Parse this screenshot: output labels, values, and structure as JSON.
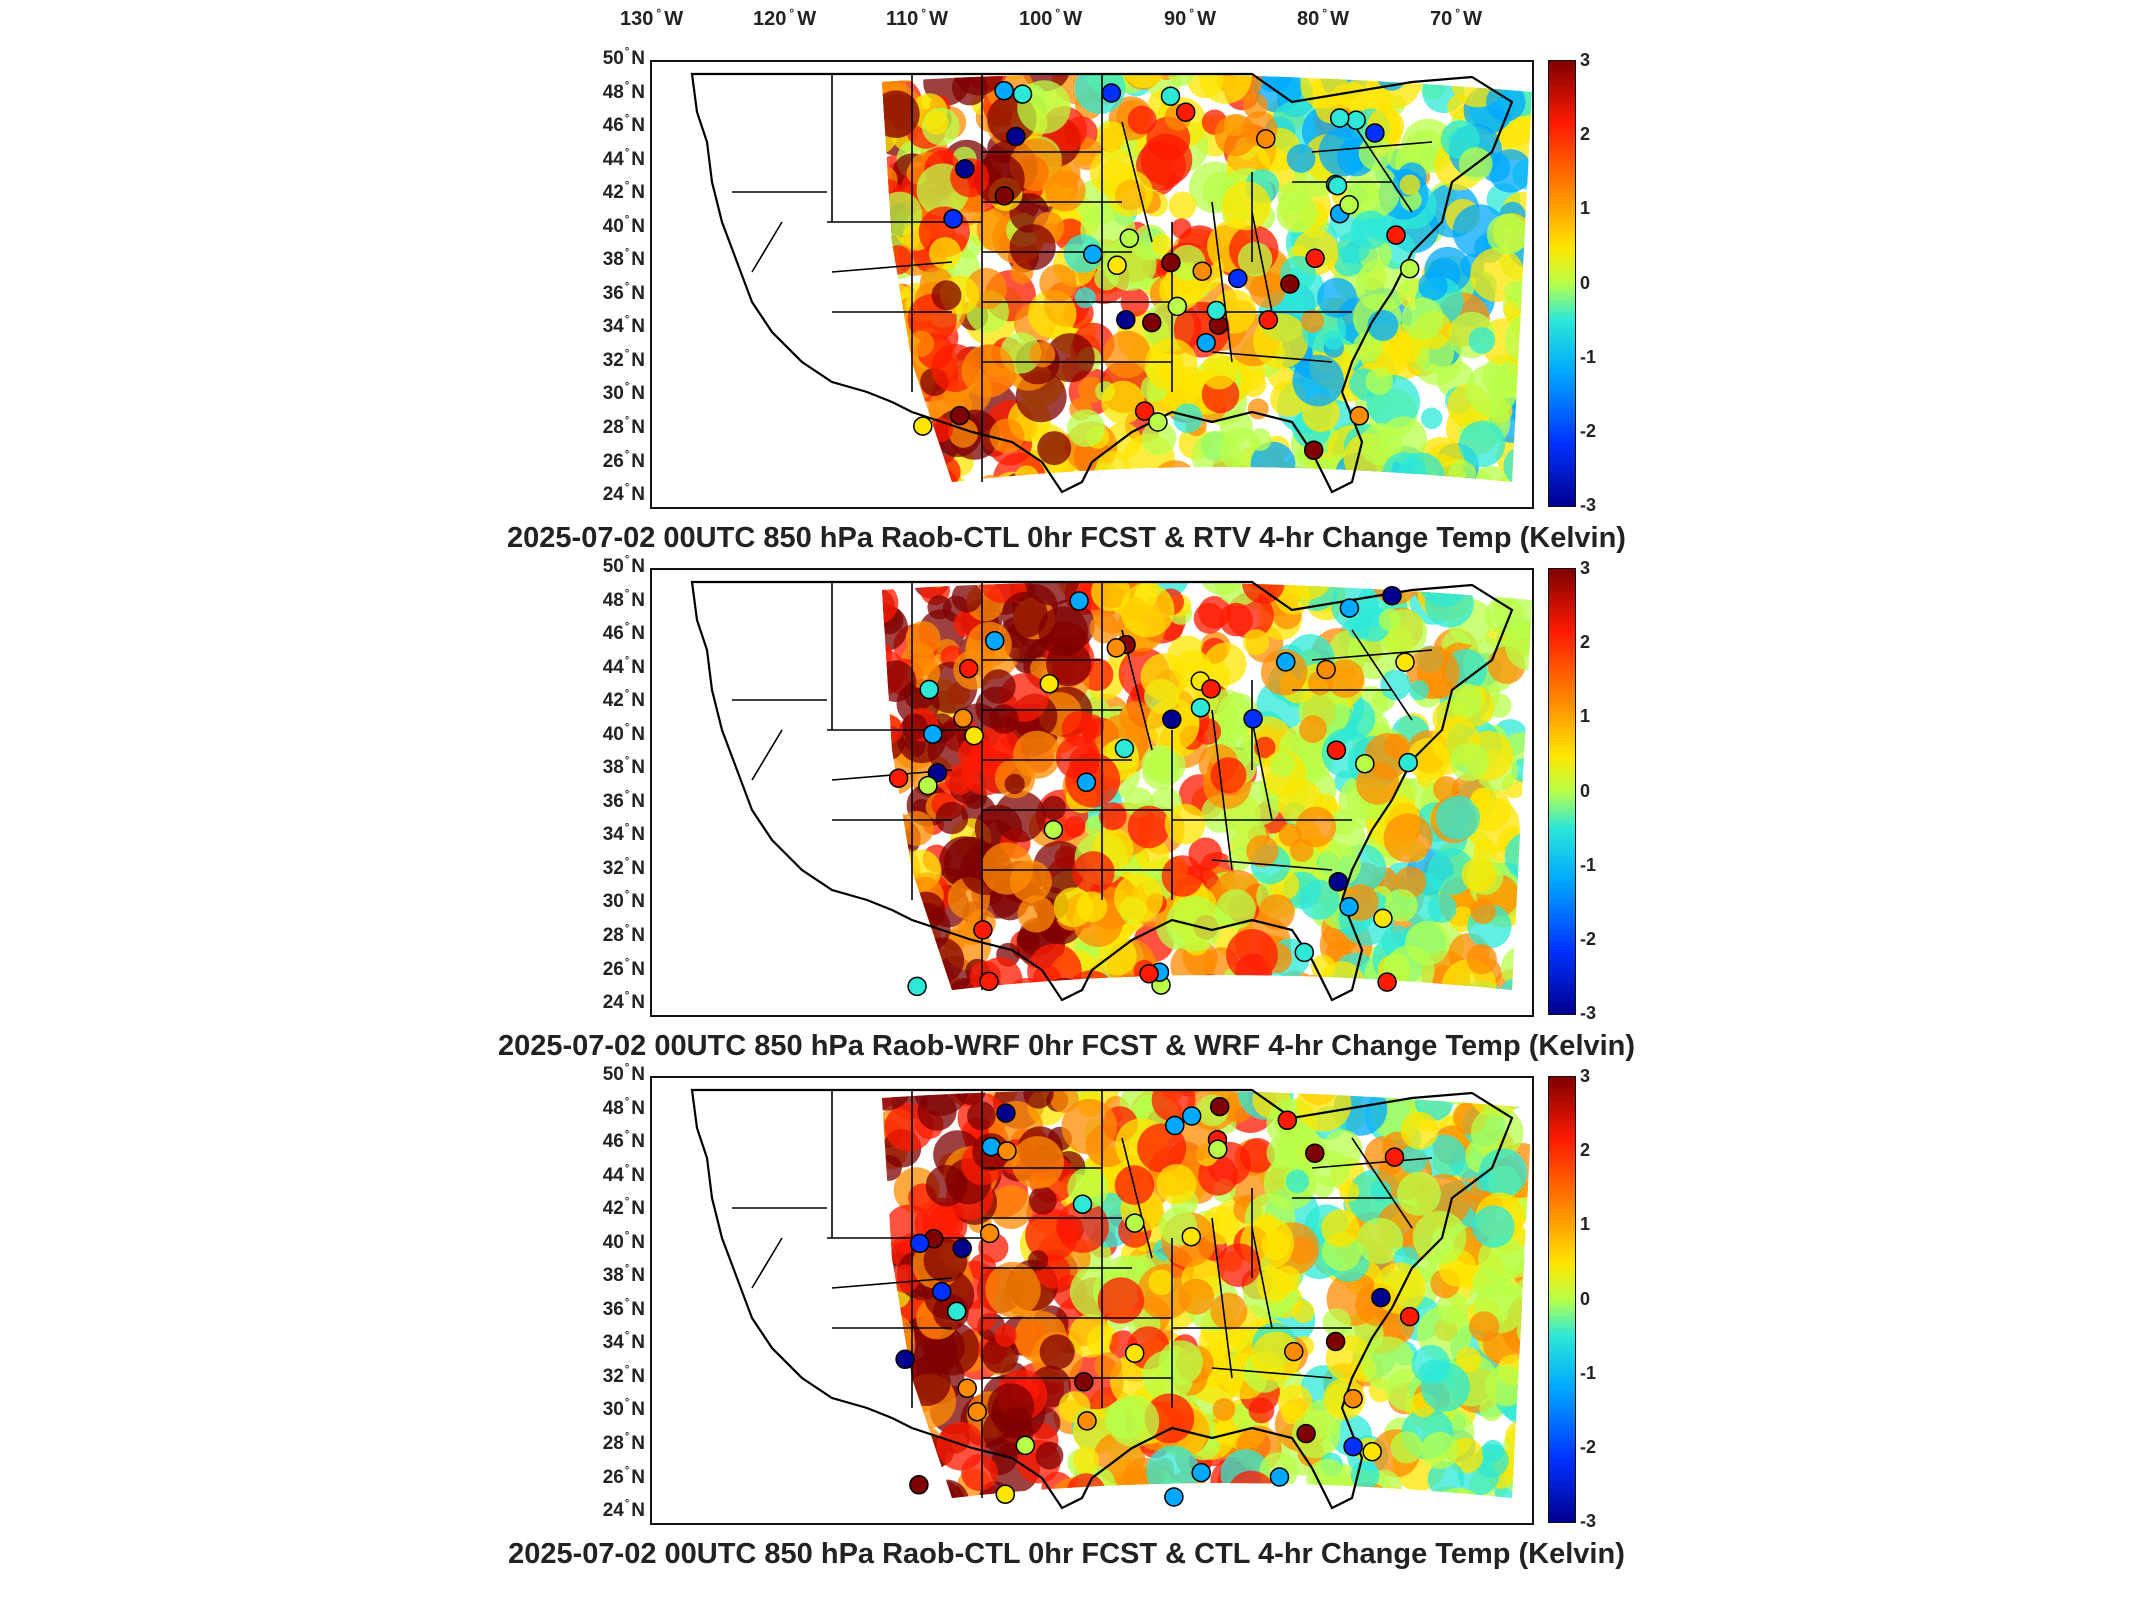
{
  "lon_axis": [
    "130",
    "120",
    "110",
    "100",
    "90",
    "80",
    "70"
  ],
  "lon_suffix": "W",
  "lat_axis": [
    "50",
    "48",
    "46",
    "44",
    "42",
    "40",
    "38",
    "36",
    "34",
    "32",
    "30",
    "28",
    "26",
    "24"
  ],
  "lat_suffix": "N",
  "degree_symbol": "°",
  "colorbar": {
    "ticks": [
      "3",
      "2",
      "1",
      "0",
      "-1",
      "-2",
      "-3"
    ],
    "range": [
      -3,
      3
    ],
    "colormap": [
      "#7f0000",
      "#ff1a00",
      "#ff8c00",
      "#ffe600",
      "#b8ff4a",
      "#2ee8d6",
      "#00a8ff",
      "#0030ff",
      "#00008f"
    ]
  },
  "panels": [
    {
      "title": "2025-07-02 00UTC 850 hPa Raob-CTL 0hr FCST & RTV 4-hr Change Temp (Kelvin)"
    },
    {
      "title": "2025-07-02 00UTC 850 hPa Raob-WRF 0hr FCST & WRF 4-hr Change Temp (Kelvin)"
    },
    {
      "title": "2025-07-02 00UTC 850 hPa Raob-CTL 0hr FCST & CTL 4-hr Change Temp (Kelvin)"
    }
  ]
}
